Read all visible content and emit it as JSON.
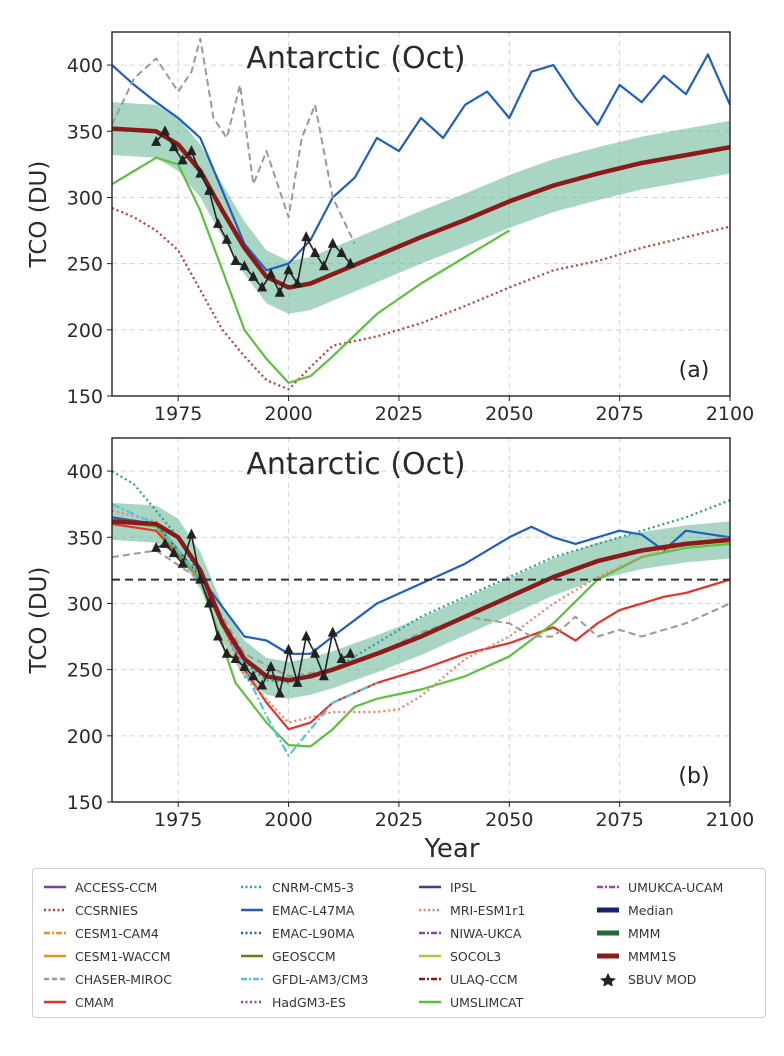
{
  "chart_data": [
    {
      "panel": "(a)",
      "type": "line",
      "title": "Antarctic (Oct)",
      "xlabel": "",
      "ylabel": "TCO (DU)",
      "xlim": [
        1960,
        2100
      ],
      "ylim": [
        150,
        425
      ],
      "xticks": [
        1975,
        2000,
        2025,
        2050,
        2075,
        2100
      ],
      "yticks": [
        150,
        200,
        250,
        300,
        350,
        400
      ],
      "grid": true,
      "series": [
        {
          "name": "MMM1S",
          "x": [
            1960,
            1970,
            1975,
            1980,
            1985,
            1990,
            1995,
            2000,
            2005,
            2010,
            2020,
            2030,
            2040,
            2050,
            2060,
            2070,
            2080,
            2090,
            2100
          ],
          "y": [
            352,
            350,
            340,
            320,
            290,
            262,
            240,
            232,
            235,
            242,
            256,
            270,
            283,
            297,
            309,
            318,
            326,
            332,
            338
          ]
        },
        {
          "name": "EMAC-L47MA",
          "x": [
            1960,
            1965,
            1970,
            1975,
            1980,
            1985,
            1990,
            1995,
            2000,
            2005,
            2010,
            2015,
            2020,
            2025,
            2030,
            2035,
            2040,
            2045,
            2050,
            2055,
            2060,
            2065,
            2070,
            2075,
            2080,
            2085,
            2090,
            2095,
            2100
          ],
          "y": [
            400,
            385,
            372,
            360,
            345,
            305,
            265,
            245,
            250,
            268,
            300,
            315,
            345,
            335,
            360,
            345,
            370,
            380,
            360,
            395,
            400,
            375,
            355,
            385,
            372,
            392,
            378,
            408,
            370
          ]
        },
        {
          "name": "CCSRNIES",
          "x": [
            1960,
            1965,
            1970,
            1975,
            1980,
            1985,
            1990,
            1995,
            2000,
            2005,
            2010,
            2020,
            2030,
            2040,
            2050,
            2060,
            2070,
            2080,
            2090,
            2100
          ],
          "y": [
            292,
            285,
            275,
            260,
            230,
            200,
            180,
            162,
            155,
            172,
            188,
            195,
            205,
            218,
            232,
            245,
            252,
            262,
            270,
            278
          ]
        },
        {
          "name": "CHASER-MIROC",
          "x": [
            1960,
            1965,
            1970,
            1975,
            1978,
            1980,
            1983,
            1986,
            1989,
            1992,
            1995,
            2000,
            2003,
            2006,
            2010,
            2015
          ],
          "y": [
            355,
            390,
            405,
            380,
            395,
            420,
            360,
            345,
            385,
            310,
            335,
            285,
            345,
            370,
            300,
            265
          ]
        },
        {
          "name": "UMSLIMCAT",
          "x": [
            1960,
            1970,
            1975,
            1980,
            1985,
            1990,
            1995,
            2000,
            2005,
            2010,
            2020,
            2030,
            2040,
            2050
          ],
          "y": [
            310,
            330,
            325,
            290,
            245,
            200,
            178,
            160,
            165,
            180,
            212,
            235,
            255,
            275
          ]
        },
        {
          "name": "SBUV MOD",
          "x": [
            1970,
            1972,
            1974,
            1976,
            1978,
            1980,
            1982,
            1984,
            1986,
            1988,
            1990,
            1992,
            1994,
            1996,
            1998,
            2000,
            2002,
            2004,
            2006,
            2008,
            2010,
            2012,
            2014
          ],
          "y": [
            342,
            350,
            338,
            328,
            335,
            318,
            305,
            280,
            268,
            252,
            248,
            240,
            232,
            242,
            228,
            245,
            235,
            270,
            258,
            248,
            265,
            258,
            250
          ]
        }
      ]
    },
    {
      "panel": "(b)",
      "type": "line",
      "title": "Antarctic (Oct)",
      "xlabel": "Year",
      "ylabel": "TCO (DU)",
      "xlim": [
        1960,
        2100
      ],
      "ylim": [
        150,
        425
      ],
      "xticks": [
        1975,
        2000,
        2025,
        2050,
        2075,
        2100
      ],
      "yticks": [
        150,
        200,
        250,
        300,
        350,
        400
      ],
      "hline": 318,
      "grid": true,
      "series": [
        {
          "name": "MMM1S",
          "x": [
            1960,
            1970,
            1975,
            1980,
            1985,
            1990,
            1995,
            2000,
            2005,
            2010,
            2020,
            2030,
            2040,
            2050,
            2060,
            2070,
            2080,
            2090,
            2100
          ],
          "y": [
            362,
            360,
            350,
            325,
            285,
            258,
            245,
            242,
            245,
            250,
            262,
            275,
            290,
            305,
            320,
            332,
            340,
            345,
            348
          ]
        },
        {
          "name": "EMAC-L47MA",
          "x": [
            1960,
            1970,
            1980,
            1990,
            1995,
            2000,
            2005,
            2010,
            2020,
            2030,
            2040,
            2050,
            2055,
            2060,
            2065,
            2070,
            2075,
            2080,
            2085,
            2090,
            2100
          ],
          "y": [
            365,
            360,
            320,
            275,
            272,
            262,
            262,
            275,
            300,
            315,
            330,
            350,
            358,
            350,
            345,
            350,
            355,
            352,
            340,
            355,
            350
          ]
        },
        {
          "name": "CNRM-CM5-3",
          "x": [
            1960,
            1965,
            1970,
            1975,
            1980,
            1985,
            1990,
            1995,
            2000,
            2005,
            2010,
            2020,
            2030,
            2040,
            2050,
            2060,
            2070,
            2080,
            2090,
            2100
          ],
          "y": [
            400,
            390,
            370,
            350,
            320,
            285,
            255,
            242,
            240,
            245,
            250,
            270,
            290,
            305,
            320,
            335,
            345,
            355,
            365,
            378
          ]
        },
        {
          "name": "CMAM",
          "x": [
            1960,
            1970,
            1980,
            1990,
            1995,
            2000,
            2005,
            2010,
            2020,
            2030,
            2040,
            2050,
            2060,
            2065,
            2070,
            2075,
            2080,
            2085,
            2090,
            2100
          ],
          "y": [
            360,
            355,
            318,
            250,
            225,
            205,
            210,
            225,
            240,
            250,
            262,
            270,
            282,
            272,
            285,
            295,
            300,
            305,
            308,
            318
          ]
        },
        {
          "name": "UMSLIMCAT",
          "x": [
            1960,
            1970,
            1980,
            1988,
            1995,
            2000,
            2005,
            2010,
            2015,
            2020,
            2030,
            2040,
            2050,
            2060,
            2070,
            2080,
            2090,
            2100
          ],
          "y": [
            362,
            358,
            318,
            240,
            210,
            193,
            192,
            205,
            222,
            228,
            235,
            245,
            260,
            285,
            318,
            335,
            342,
            345
          ]
        },
        {
          "name": "MRI-ESM1r1",
          "x": [
            1960,
            1970,
            1980,
            1990,
            2000,
            2010,
            2020,
            2025,
            2030,
            2040,
            2050,
            2060,
            2070,
            2080,
            2090,
            2100
          ],
          "y": [
            370,
            362,
            320,
            245,
            210,
            218,
            218,
            220,
            230,
            258,
            275,
            300,
            320,
            335,
            345,
            350
          ]
        },
        {
          "name": "CHASER-MIROC",
          "x": [
            1960,
            1970,
            1980,
            1990,
            2000,
            2010,
            2020,
            2030,
            2040,
            2050,
            2055,
            2060,
            2065,
            2070,
            2075,
            2080,
            2090,
            2100
          ],
          "y": [
            335,
            340,
            318,
            262,
            245,
            250,
            262,
            278,
            290,
            285,
            275,
            275,
            290,
            275,
            280,
            275,
            285,
            300
          ]
        },
        {
          "name": "GFDL-AM3/CM3",
          "x": [
            1960,
            1970,
            1980,
            1990,
            1995,
            2000,
            2005,
            2010,
            2020
          ],
          "y": [
            375,
            360,
            320,
            250,
            215,
            185,
            205,
            225,
            240
          ]
        },
        {
          "name": "SBUV MOD",
          "x": [
            1970,
            1972,
            1974,
            1976,
            1978,
            1980,
            1982,
            1984,
            1986,
            1988,
            1990,
            1992,
            1994,
            1996,
            1998,
            2000,
            2002,
            2004,
            2006,
            2008,
            2010,
            2012,
            2014
          ],
          "y": [
            342,
            345,
            338,
            330,
            352,
            318,
            300,
            275,
            262,
            258,
            252,
            245,
            238,
            252,
            232,
            265,
            240,
            275,
            262,
            245,
            278,
            258,
            262
          ]
        }
      ]
    }
  ],
  "panels": {
    "a": {
      "title": "Antarctic (Oct)",
      "label": "(a)",
      "ylabel": "TCO (DU)"
    },
    "b": {
      "title": "Antarctic (Oct)",
      "label": "(b)",
      "ylabel": "TCO (DU)",
      "xlabel": "Year"
    }
  },
  "ticks": {
    "x": [
      "1975",
      "2000",
      "2025",
      "2050",
      "2075",
      "2100"
    ],
    "y": [
      "150",
      "200",
      "250",
      "300",
      "350",
      "400"
    ]
  },
  "legend": [
    {
      "label": "ACCESS-CCM",
      "color": "#7b3fa0",
      "style": "solid"
    },
    {
      "label": "CNRM-CM5-3",
      "color": "#2a9d9a",
      "style": "dotted"
    },
    {
      "label": "IPSL",
      "color": "#3b3f8c",
      "style": "solid"
    },
    {
      "label": "UMUKCA-UCAM",
      "color": "#a23fb5",
      "style": "dashdot"
    },
    {
      "label": "CCSRNIES",
      "color": "#c0392b",
      "style": "dotted"
    },
    {
      "label": "EMAC-L47MA",
      "color": "#1f5fbf",
      "style": "solid"
    },
    {
      "label": "MRI-ESM1r1",
      "color": "#f08060",
      "style": "dotted"
    },
    {
      "label": "Median",
      "color": "#12256e",
      "style": "thick"
    },
    {
      "label": "CESM1-CAM4",
      "color": "#f28c28",
      "style": "dashdot"
    },
    {
      "label": "EMAC-L90MA",
      "color": "#1f5fbf",
      "style": "dotted"
    },
    {
      "label": "NIWA-UKCA",
      "color": "#8e44ad",
      "style": "dashdot"
    },
    {
      "label": "MMM",
      "color": "#1e6b35",
      "style": "thick"
    },
    {
      "label": "CESM1-WACCM",
      "color": "#f28c28",
      "style": "solid"
    },
    {
      "label": "GEOSCCM",
      "color": "#6b7a1f",
      "style": "solid"
    },
    {
      "label": "SOCOL3",
      "color": "#b9c23a",
      "style": "solid"
    },
    {
      "label": "MMM1S",
      "color": "#8b1a1a",
      "style": "thick"
    },
    {
      "label": "CHASER-MIROC",
      "color": "#999999",
      "style": "dashed"
    },
    {
      "label": "GFDL-AM3/CM3",
      "color": "#4fc3e8",
      "style": "dashdot"
    },
    {
      "label": "ULAQ-CCM",
      "color": "#8b1a1a",
      "style": "dashdot"
    },
    {
      "label": "SBUV MOD",
      "color": "#222222",
      "style": "star"
    },
    {
      "label": "CMAM",
      "color": "#e8302a",
      "style": "solid"
    },
    {
      "label": "HadGM3-ES",
      "color": "#8e44ad",
      "style": "dotted"
    },
    {
      "label": "UMSLIMCAT",
      "color": "#5cc23e",
      "style": "solid"
    }
  ],
  "colors": {
    "spread_a": "#63b592",
    "spread_b": "#63b592",
    "ensemble_mean": "#8b1a1a",
    "obs": "#222222"
  }
}
